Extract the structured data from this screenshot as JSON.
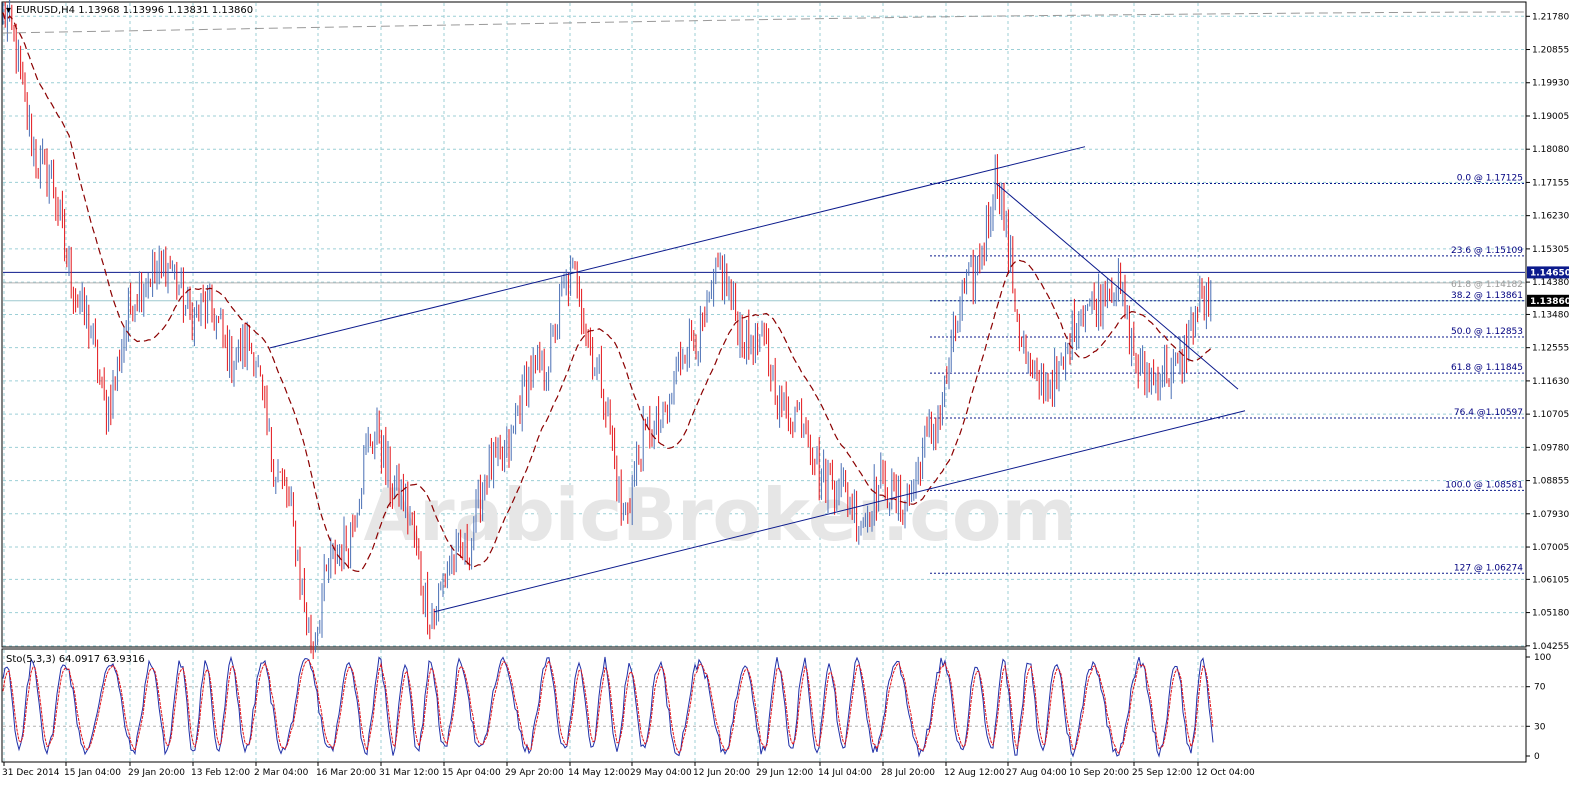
{
  "header": {
    "title": "EURUSD,H4  1.13968 1.13996 1.13831 1.13860"
  },
  "stoch": {
    "label": "Sto(5,3,3) 64.0917 63.9316",
    "ticks": [
      "100",
      "70",
      "30",
      "0"
    ]
  },
  "watermark": "ArabicBroker.com",
  "price_axis": {
    "ticks": [
      "1.21780",
      "1.20855",
      "1.19930",
      "1.19005",
      "1.18080",
      "1.17155",
      "1.16230",
      "1.15305",
      "1.14380",
      "1.13480",
      "1.12555",
      "1.11630",
      "1.10705",
      "1.09780",
      "1.08855",
      "1.07930",
      "1.07005",
      "1.06105",
      "1.05180",
      "1.04255"
    ],
    "current_label": "1.13860",
    "level_label": "1.14650"
  },
  "time_axis": {
    "ticks": [
      "31 Dec 2014",
      "15 Jan 04:00",
      "29 Jan 20:00",
      "13 Feb 12:00",
      "2 Mar 04:00",
      "16 Mar 20:00",
      "31 Mar 12:00",
      "15 Apr 04:00",
      "29 Apr 20:00",
      "14 May 12:00",
      "29 May 04:00",
      "12 Jun 20:00",
      "29 Jun 12:00",
      "14 Jul 04:00",
      "28 Jul 20:00",
      "12 Aug 12:00",
      "27 Aug 04:00",
      "10 Sep 20:00",
      "25 Sep 12:00",
      "12 Oct 04:00"
    ]
  },
  "fib_levels": [
    {
      "label": "0.0 @ 1.17125",
      "price": 1.17125
    },
    {
      "label": "23.6 @ 1.15109",
      "price": 1.15109
    },
    {
      "label": "38.2 @ 1.13861",
      "price": 1.13861
    },
    {
      "label": "50.0 @ 1.12853",
      "price": 1.12853
    },
    {
      "label": "61.8 @ 1.11845",
      "price": 1.11845
    },
    {
      "label": "76.4 @1.10597",
      "price": 1.10597
    },
    {
      "label": "100.0 @ 1.08581",
      "price": 1.08581
    },
    {
      "label": "127 @ 1.06274",
      "price": 1.06274
    }
  ],
  "extra_fib_label": "61.8 @ 1.14182",
  "colors": {
    "bull": "#4a6fb5",
    "bear": "#e3151a",
    "ma": "#8b0000",
    "trend": "#0b1a8c",
    "grid": "#9ccfd6"
  },
  "chart_data": {
    "type": "candlestick",
    "symbol": "EURUSD",
    "timeframe": "H4",
    "ylim": [
      1.0425,
      1.2215
    ],
    "last": {
      "open": 1.13968,
      "high": 1.13996,
      "low": 1.13831,
      "close": 1.1386
    },
    "swing_points": [
      {
        "date": "31 Dec 2014",
        "price": 1.217
      },
      {
        "date": "9 Jan",
        "price": 1.18
      },
      {
        "date": "15 Jan 04:00",
        "price": 1.147
      },
      {
        "date": "26 Jan",
        "price": 1.11
      },
      {
        "date": "3 Feb",
        "price": 1.15
      },
      {
        "date": "2 Mar 04:00",
        "price": 1.12
      },
      {
        "date": "16 Mar 20:00",
        "price": 1.046
      },
      {
        "date": "26 Mar",
        "price": 1.103
      },
      {
        "date": "13 Apr",
        "price": 1.052
      },
      {
        "date": "14 May 12:00",
        "price": 1.1465
      },
      {
        "date": "27 May",
        "price": 1.082
      },
      {
        "date": "18 Jun",
        "price": 1.144
      },
      {
        "date": "20 Jul",
        "price": 1.081
      },
      {
        "date": "5 Aug",
        "price": 1.086
      },
      {
        "date": "24 Aug",
        "price": 1.1713
      },
      {
        "date": "3 Sep",
        "price": 1.109
      },
      {
        "date": "18 Sep",
        "price": 1.146
      },
      {
        "date": "29 Sep",
        "price": 1.113
      },
      {
        "date": "12 Oct 04:00",
        "price": 1.1386
      }
    ],
    "horizontal_level": 1.1465,
    "stochastic": {
      "k": 64.0917,
      "d": 63.9316,
      "levels": [
        70,
        30
      ],
      "ylim": [
        0,
        100
      ]
    }
  }
}
